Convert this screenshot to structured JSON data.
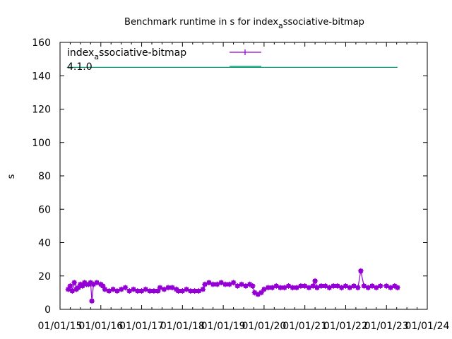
{
  "chart_data": {
    "type": "line",
    "title_main": "Benchmark runtime in s for index",
    "title_sub": "a",
    "title_rest": "ssociative-bitmap",
    "xlabel": "",
    "ylabel": "s",
    "xlim": [
      2015,
      2024
    ],
    "ylim": [
      0,
      160
    ],
    "yticks": [
      0,
      20,
      40,
      60,
      80,
      100,
      120,
      140,
      160
    ],
    "xticks": [
      2015,
      2016,
      2017,
      2018,
      2019,
      2020,
      2021,
      2022,
      2023,
      2024
    ],
    "xtick_labels": [
      "01/01/15",
      "01/01/16",
      "01/01/17",
      "01/01/18",
      "01/01/19",
      "01/01/20",
      "01/01/21",
      "01/01/22",
      "01/01/23",
      "01/01/24"
    ],
    "legend_position": "top-left",
    "series": [
      {
        "name_main": "index",
        "name_sub": "a",
        "name_rest": "ssociative-bitmap",
        "color": "#9400d3",
        "style": "linespoints",
        "x": [
          2015.2,
          2015.25,
          2015.3,
          2015.35,
          2015.4,
          2015.45,
          2015.5,
          2015.55,
          2015.6,
          2015.65,
          2015.7,
          2015.75,
          2015.78,
          2015.82,
          2015.9,
          2016.0,
          2016.05,
          2016.1,
          2016.2,
          2016.3,
          2016.4,
          2016.5,
          2016.6,
          2016.7,
          2016.8,
          2016.9,
          2017.0,
          2017.1,
          2017.2,
          2017.3,
          2017.4,
          2017.45,
          2017.55,
          2017.65,
          2017.75,
          2017.85,
          2017.9,
          2018.0,
          2018.1,
          2018.2,
          2018.3,
          2018.4,
          2018.5,
          2018.55,
          2018.65,
          2018.75,
          2018.85,
          2018.95,
          2019.05,
          2019.15,
          2019.25,
          2019.35,
          2019.45,
          2019.55,
          2019.65,
          2019.72,
          2019.77,
          2019.85,
          2019.93,
          2020.0,
          2020.1,
          2020.2,
          2020.3,
          2020.4,
          2020.5,
          2020.6,
          2020.7,
          2020.8,
          2020.9,
          2021.0,
          2021.1,
          2021.2,
          2021.25,
          2021.3,
          2021.4,
          2021.5,
          2021.6,
          2021.7,
          2021.8,
          2021.9,
          2022.0,
          2022.1,
          2022.2,
          2022.3,
          2022.37,
          2022.45,
          2022.55,
          2022.65,
          2022.75,
          2022.85,
          2023.0,
          2023.1,
          2023.2,
          2023.27
        ],
        "y": [
          12,
          14,
          11,
          16,
          12,
          13,
          15,
          14,
          16,
          15,
          15,
          16,
          5,
          15,
          16,
          15,
          14,
          12,
          11,
          12,
          11,
          12,
          13,
          11,
          12,
          11,
          11,
          12,
          11,
          11,
          11,
          13,
          12,
          13,
          13,
          12,
          11,
          11,
          12,
          11,
          11,
          11,
          12,
          15,
          16,
          15,
          15,
          16,
          15,
          15,
          16,
          14,
          15,
          14,
          15,
          14,
          10,
          9,
          10,
          12,
          13,
          13,
          14,
          13,
          13,
          14,
          13,
          13,
          14,
          14,
          13,
          14,
          17,
          13,
          14,
          14,
          13,
          14,
          14,
          13,
          14,
          13,
          14,
          13,
          23,
          14,
          13,
          14,
          13,
          14,
          14,
          13,
          14,
          13
        ]
      },
      {
        "name": "4.1.0",
        "color": "#009e73",
        "style": "line",
        "x": [
          2015.17,
          2023.27
        ],
        "y": [
          145,
          145
        ]
      }
    ]
  }
}
